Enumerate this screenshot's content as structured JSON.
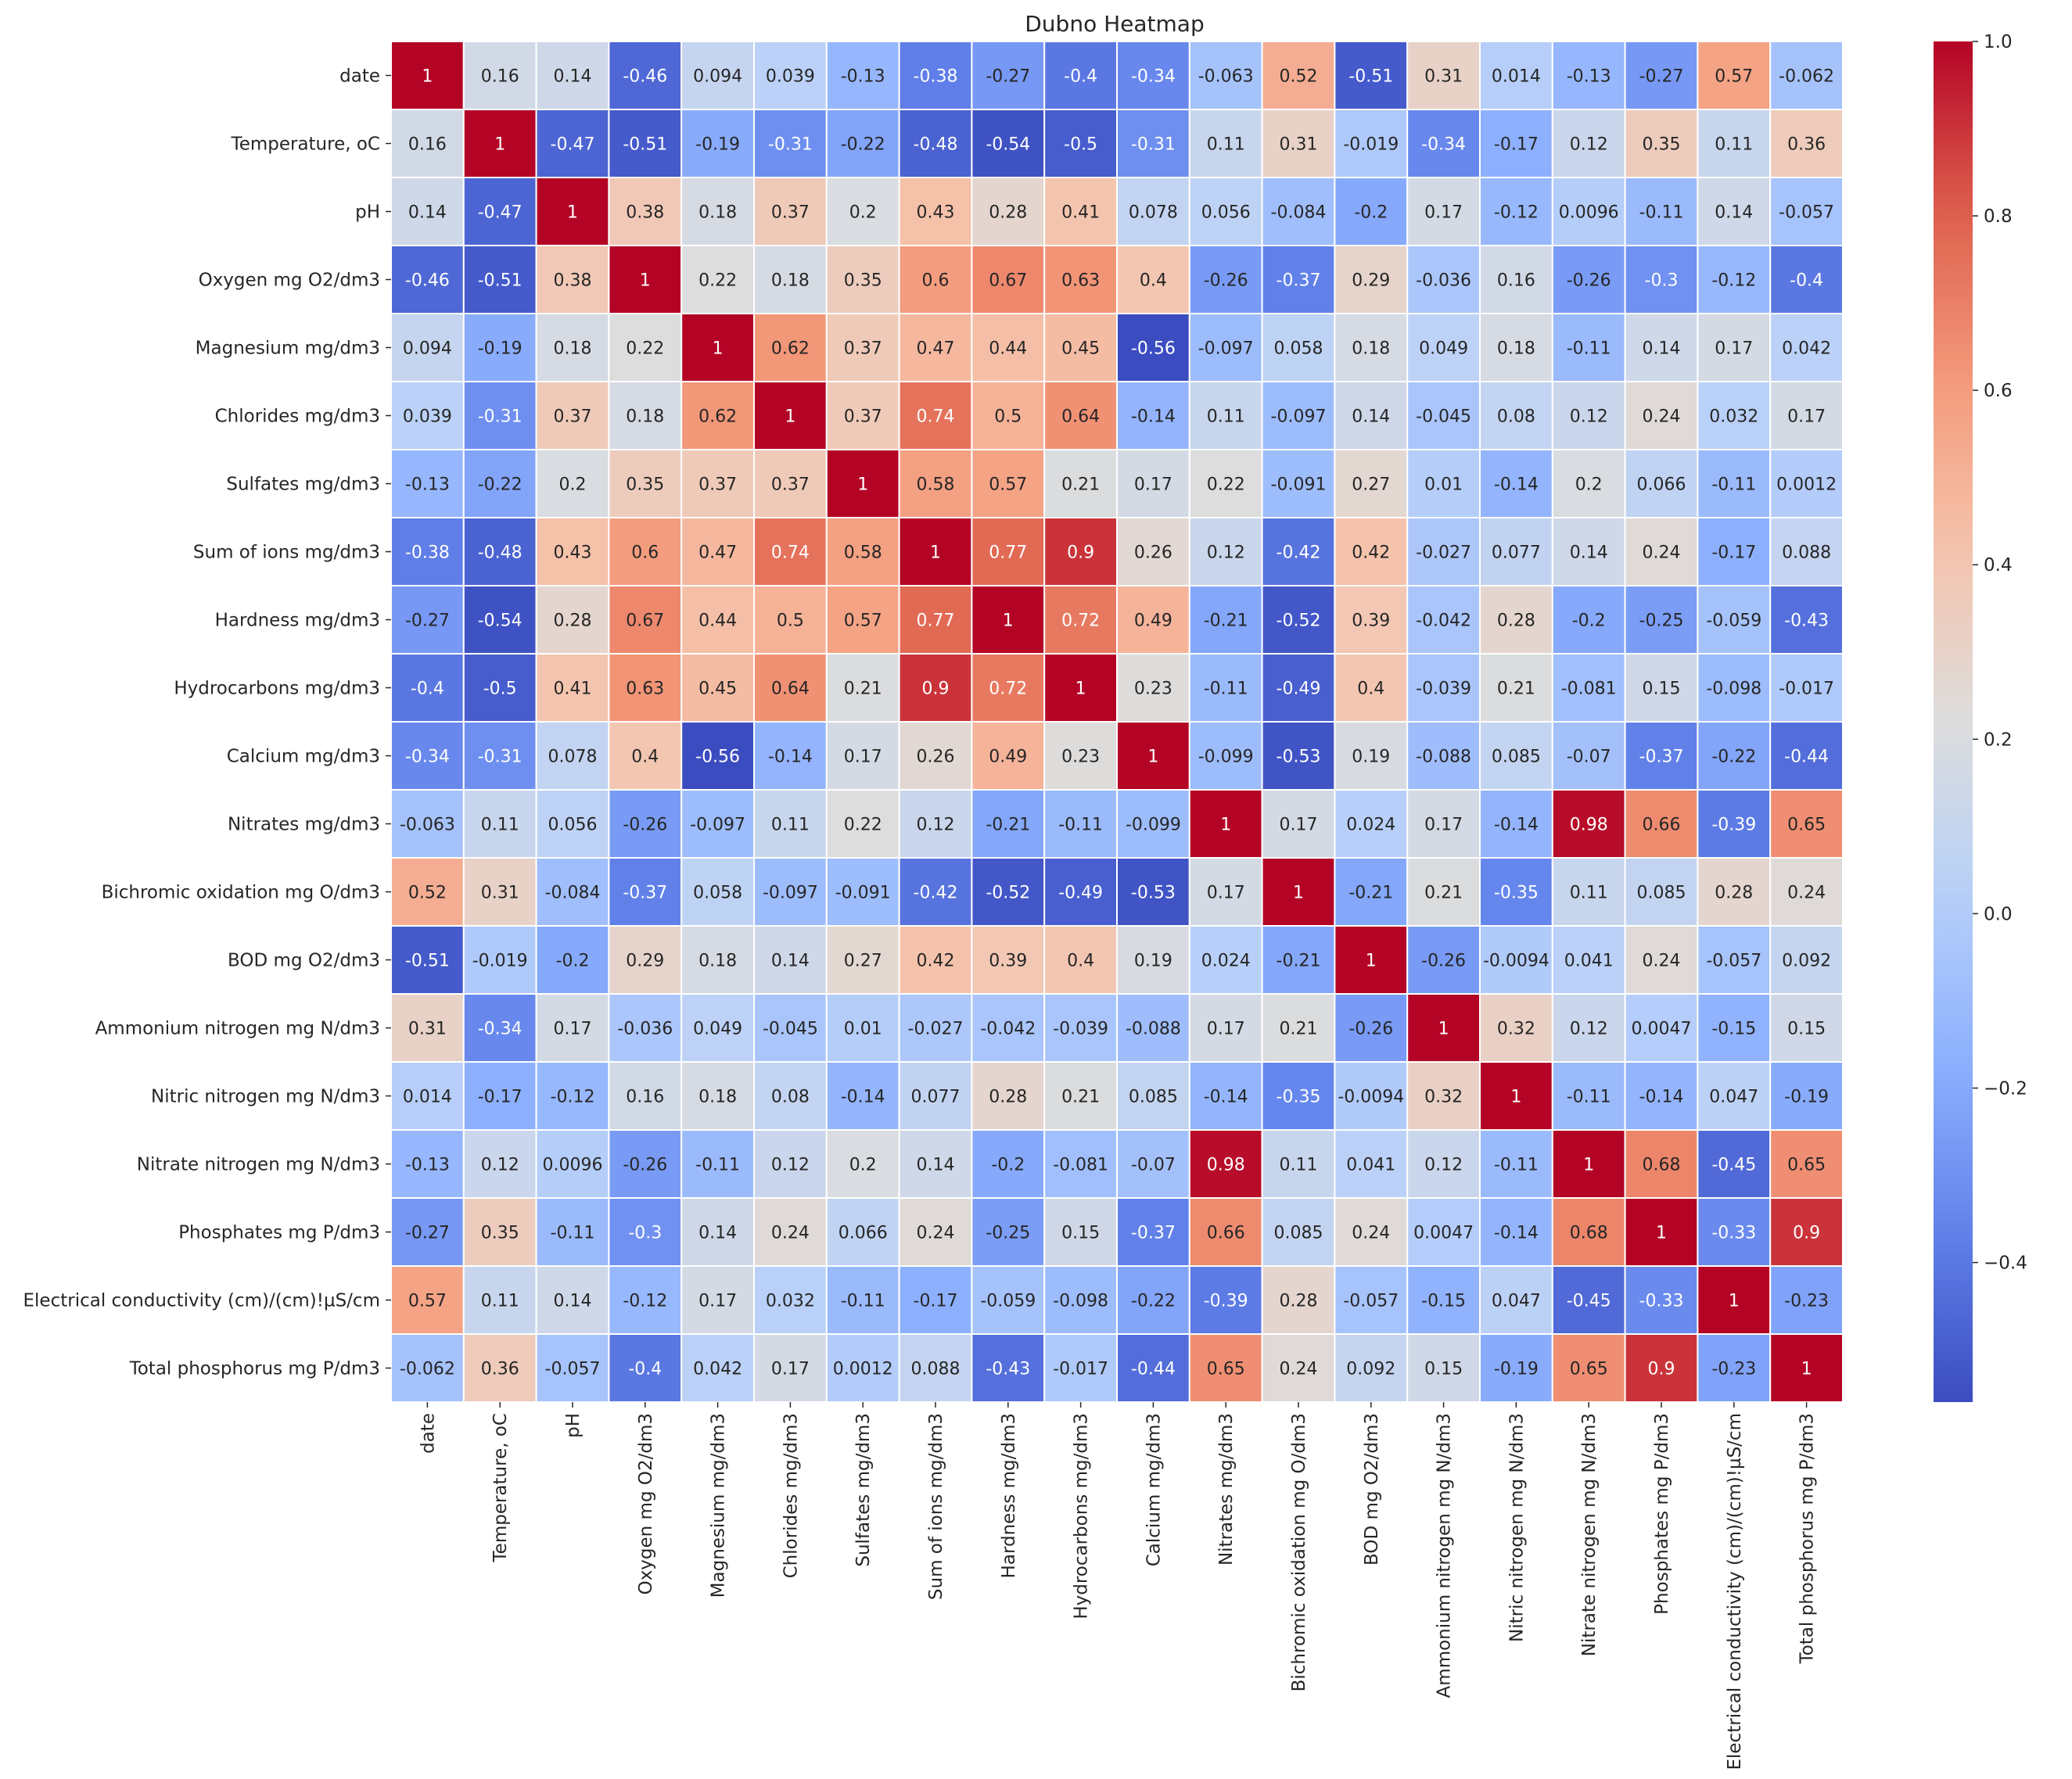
{
  "chart_data": {
    "type": "heatmap",
    "title": "Dubno Heatmap",
    "colormap": "coolwarm",
    "vmin": -0.56,
    "vmax": 1.0,
    "colorbar_ticks": [
      "1.0",
      "0.8",
      "0.6",
      "0.4",
      "0.2",
      "0.0",
      "−0.2",
      "−0.4"
    ],
    "colorbar_tick_values": [
      1.0,
      0.8,
      0.6,
      0.4,
      0.2,
      0.0,
      -0.2,
      -0.4
    ],
    "labels": [
      "date",
      "Temperature, oC",
      "pH",
      "Oxygen mg O2/dm3",
      "Magnesium mg/dm3",
      "Chlorides mg/dm3",
      "Sulfates mg/dm3",
      "Sum of ions mg/dm3",
      "Hardness mg/dm3",
      "Hydrocarbons mg/dm3",
      "Calcium mg/dm3",
      "Nitrates mg/dm3",
      "Bichromic oxidation mg O/dm3",
      "BOD mg O2/dm3",
      "Ammonium nitrogen mg N/dm3",
      "Nitric nitrogen mg N/dm3",
      "Nitrate nitrogen mg N/dm3",
      "Phosphates mg P/dm3",
      "Electrical conductivity (cm)/(cm)!µS/cm",
      "Total phosphorus mg P/dm3"
    ],
    "values": [
      [
        "1",
        "0.16",
        "0.14",
        "-0.46",
        "0.094",
        "0.039",
        "-0.13",
        "-0.38",
        "-0.27",
        "-0.4",
        "-0.34",
        "-0.063",
        "0.52",
        "-0.51",
        "0.31",
        "0.014",
        "-0.13",
        "-0.27",
        "0.57",
        "-0.062"
      ],
      [
        "0.16",
        "1",
        "-0.47",
        "-0.51",
        "-0.19",
        "-0.31",
        "-0.22",
        "-0.48",
        "-0.54",
        "-0.5",
        "-0.31",
        "0.11",
        "0.31",
        "-0.019",
        "-0.34",
        "-0.17",
        "0.12",
        "0.35",
        "0.11",
        "0.36"
      ],
      [
        "0.14",
        "-0.47",
        "1",
        "0.38",
        "0.18",
        "0.37",
        "0.2",
        "0.43",
        "0.28",
        "0.41",
        "0.078",
        "0.056",
        "-0.084",
        "-0.2",
        "0.17",
        "-0.12",
        "0.0096",
        "-0.11",
        "0.14",
        "-0.057"
      ],
      [
        "-0.46",
        "-0.51",
        "0.38",
        "1",
        "0.22",
        "0.18",
        "0.35",
        "0.6",
        "0.67",
        "0.63",
        "0.4",
        "-0.26",
        "-0.37",
        "0.29",
        "-0.036",
        "0.16",
        "-0.26",
        "-0.3",
        "-0.12",
        "-0.4"
      ],
      [
        "0.094",
        "-0.19",
        "0.18",
        "0.22",
        "1",
        "0.62",
        "0.37",
        "0.47",
        "0.44",
        "0.45",
        "-0.56",
        "-0.097",
        "0.058",
        "0.18",
        "0.049",
        "0.18",
        "-0.11",
        "0.14",
        "0.17",
        "0.042"
      ],
      [
        "0.039",
        "-0.31",
        "0.37",
        "0.18",
        "0.62",
        "1",
        "0.37",
        "0.74",
        "0.5",
        "0.64",
        "-0.14",
        "0.11",
        "-0.097",
        "0.14",
        "-0.045",
        "0.08",
        "0.12",
        "0.24",
        "0.032",
        "0.17"
      ],
      [
        "-0.13",
        "-0.22",
        "0.2",
        "0.35",
        "0.37",
        "0.37",
        "1",
        "0.58",
        "0.57",
        "0.21",
        "0.17",
        "0.22",
        "-0.091",
        "0.27",
        "0.01",
        "-0.14",
        "0.2",
        "0.066",
        "-0.11",
        "0.0012"
      ],
      [
        "-0.38",
        "-0.48",
        "0.43",
        "0.6",
        "0.47",
        "0.74",
        "0.58",
        "1",
        "0.77",
        "0.9",
        "0.26",
        "0.12",
        "-0.42",
        "0.42",
        "-0.027",
        "0.077",
        "0.14",
        "0.24",
        "-0.17",
        "0.088"
      ],
      [
        "-0.27",
        "-0.54",
        "0.28",
        "0.67",
        "0.44",
        "0.5",
        "0.57",
        "0.77",
        "1",
        "0.72",
        "0.49",
        "-0.21",
        "-0.52",
        "0.39",
        "-0.042",
        "0.28",
        "-0.2",
        "-0.25",
        "-0.059",
        "-0.43"
      ],
      [
        "-0.4",
        "-0.5",
        "0.41",
        "0.63",
        "0.45",
        "0.64",
        "0.21",
        "0.9",
        "0.72",
        "1",
        "0.23",
        "-0.11",
        "-0.49",
        "0.4",
        "-0.039",
        "0.21",
        "-0.081",
        "0.15",
        "-0.098",
        "-0.017"
      ],
      [
        "-0.34",
        "-0.31",
        "0.078",
        "0.4",
        "-0.56",
        "-0.14",
        "0.17",
        "0.26",
        "0.49",
        "0.23",
        "1",
        "-0.099",
        "-0.53",
        "0.19",
        "-0.088",
        "0.085",
        "-0.07",
        "-0.37",
        "-0.22",
        "-0.44"
      ],
      [
        "-0.063",
        "0.11",
        "0.056",
        "-0.26",
        "-0.097",
        "0.11",
        "0.22",
        "0.12",
        "-0.21",
        "-0.11",
        "-0.099",
        "1",
        "0.17",
        "0.024",
        "0.17",
        "-0.14",
        "0.98",
        "0.66",
        "-0.39",
        "0.65"
      ],
      [
        "0.52",
        "0.31",
        "-0.084",
        "-0.37",
        "0.058",
        "-0.097",
        "-0.091",
        "-0.42",
        "-0.52",
        "-0.49",
        "-0.53",
        "0.17",
        "1",
        "-0.21",
        "0.21",
        "-0.35",
        "0.11",
        "0.085",
        "0.28",
        "0.24"
      ],
      [
        "-0.51",
        "-0.019",
        "-0.2",
        "0.29",
        "0.18",
        "0.14",
        "0.27",
        "0.42",
        "0.39",
        "0.4",
        "0.19",
        "0.024",
        "-0.21",
        "1",
        "-0.26",
        "-0.0094",
        "0.041",
        "0.24",
        "-0.057",
        "0.092"
      ],
      [
        "0.31",
        "-0.34",
        "0.17",
        "-0.036",
        "0.049",
        "-0.045",
        "0.01",
        "-0.027",
        "-0.042",
        "-0.039",
        "-0.088",
        "0.17",
        "0.21",
        "-0.26",
        "1",
        "0.32",
        "0.12",
        "0.0047",
        "-0.15",
        "0.15"
      ],
      [
        "0.014",
        "-0.17",
        "-0.12",
        "0.16",
        "0.18",
        "0.08",
        "-0.14",
        "0.077",
        "0.28",
        "0.21",
        "0.085",
        "-0.14",
        "-0.35",
        "-0.0094",
        "0.32",
        "1",
        "-0.11",
        "-0.14",
        "0.047",
        "-0.19"
      ],
      [
        "-0.13",
        "0.12",
        "0.0096",
        "-0.26",
        "-0.11",
        "0.12",
        "0.2",
        "0.14",
        "-0.2",
        "-0.081",
        "-0.07",
        "0.98",
        "0.11",
        "0.041",
        "0.12",
        "-0.11",
        "1",
        "0.68",
        "-0.45",
        "0.65"
      ],
      [
        "-0.27",
        "0.35",
        "-0.11",
        "-0.3",
        "0.14",
        "0.24",
        "0.066",
        "0.24",
        "-0.25",
        "0.15",
        "-0.37",
        "0.66",
        "0.085",
        "0.24",
        "0.0047",
        "-0.14",
        "0.68",
        "1",
        "-0.33",
        "0.9"
      ],
      [
        "0.57",
        "0.11",
        "0.14",
        "-0.12",
        "0.17",
        "0.032",
        "-0.11",
        "-0.17",
        "-0.059",
        "-0.098",
        "-0.22",
        "-0.39",
        "0.28",
        "-0.057",
        "-0.15",
        "0.047",
        "-0.45",
        "-0.33",
        "1",
        "-0.23"
      ],
      [
        "-0.062",
        "0.36",
        "-0.057",
        "-0.4",
        "0.042",
        "0.17",
        "0.0012",
        "0.088",
        "-0.43",
        "-0.017",
        "-0.44",
        "0.65",
        "0.24",
        "0.092",
        "0.15",
        "-0.19",
        "0.65",
        "0.9",
        "-0.23",
        "1"
      ]
    ]
  }
}
